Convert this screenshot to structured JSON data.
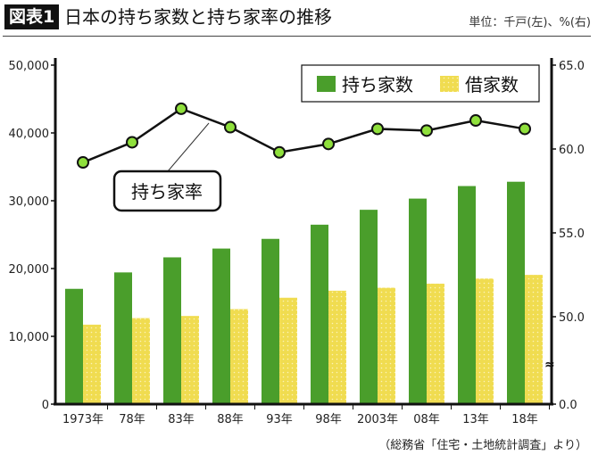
{
  "header": {
    "badge": "図表1",
    "title": "日本の持ち家数と持ち家率の推移",
    "unit": "単位：千戸(左)、%(右)"
  },
  "source": "（総務省「住宅・土地統計調査」より）",
  "chart_data": {
    "type": "bar",
    "categories": [
      "1973年",
      "78年",
      "83年",
      "88年",
      "93年",
      "98年",
      "2003年",
      "08年",
      "13年",
      "18年"
    ],
    "series": [
      {
        "name": "持ち家数",
        "axis": "left",
        "type": "bar",
        "color": "#4a9e2b",
        "values": [
          17007,
          19428,
          21650,
          22948,
          24376,
          26468,
          28666,
          30316,
          32166,
          32802
        ]
      },
      {
        "name": "借家数",
        "axis": "left",
        "type": "bar",
        "color": "#f0dc50",
        "values": [
          11723,
          12689,
          13005,
          14015,
          15691,
          16730,
          17166,
          17770,
          18519,
          19065
        ]
      },
      {
        "name": "持ち家率",
        "axis": "right",
        "type": "line",
        "color": "#8fe03c",
        "values": [
          59.2,
          60.4,
          62.4,
          61.3,
          59.8,
          60.3,
          61.2,
          61.1,
          61.7,
          61.2
        ]
      }
    ],
    "left_axis": {
      "ticks": [
        "0",
        "10,000",
        "20,000",
        "30,000",
        "40,000",
        "50,000"
      ],
      "range": [
        0,
        50000
      ]
    },
    "right_axis": {
      "ticks": [
        "0.0",
        "50.0",
        "55.0",
        "60.0",
        "65.0"
      ],
      "range": [
        50,
        65
      ],
      "broken": true
    },
    "annotation": "持ち家率",
    "legend_placement": "top-right"
  }
}
